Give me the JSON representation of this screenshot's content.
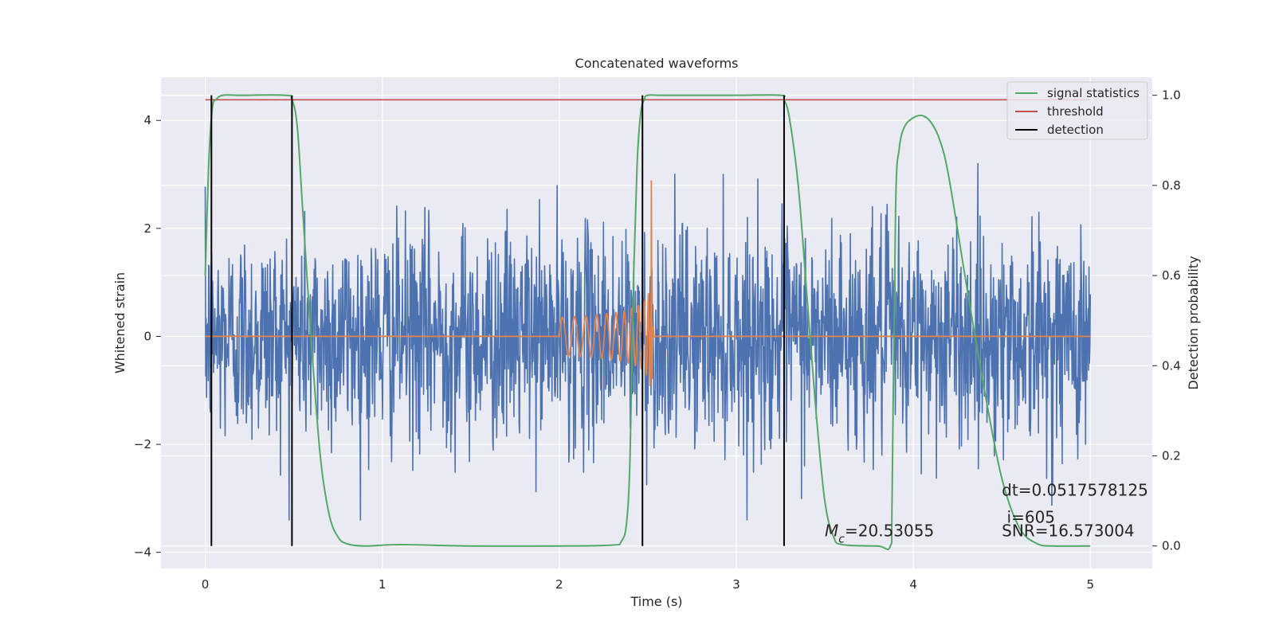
{
  "chart_data": {
    "type": "line",
    "title": "Concatenated waveforms",
    "xlabel": "Time (s)",
    "ylabel": "Whitened strain",
    "y2label": "Detection probability",
    "xlim": [
      -0.25,
      5.35
    ],
    "ylim": [
      -4.3,
      4.8
    ],
    "y2lim": [
      -0.05,
      1.04
    ],
    "xticks": [
      0,
      1,
      2,
      3,
      4,
      5
    ],
    "yticks": [
      -4,
      -2,
      0,
      2,
      4
    ],
    "y2ticks": [
      0.0,
      0.2,
      0.4,
      0.6,
      0.8,
      1.0
    ],
    "grid": true,
    "legend_position": "top-right",
    "legend": [
      "signal statistics",
      "threshold",
      "detection"
    ],
    "colors": {
      "strain": "#4c72b0",
      "waveform": "#dd8452",
      "signal_statistics": "#55a868",
      "threshold": "#c44e52",
      "detection": "#000000",
      "plot_bg": "#eaeaf2",
      "grid": "#ffffff"
    },
    "series": [
      {
        "name": "signal statistics",
        "axis": "right",
        "x": [
          0.0,
          0.02,
          0.04,
          0.06,
          0.1,
          0.2,
          0.45,
          0.49,
          0.52,
          0.55,
          0.6,
          0.65,
          0.7,
          0.75,
          0.8,
          0.9,
          1.1,
          1.5,
          2.0,
          2.3,
          2.35,
          2.38,
          2.4,
          2.42,
          2.44,
          2.46,
          2.48,
          2.5,
          2.6,
          3.0,
          3.25,
          3.27,
          3.3,
          3.35,
          3.4,
          3.45,
          3.5,
          3.55,
          3.6,
          3.8,
          3.87,
          3.88,
          3.9,
          3.92,
          3.95,
          4.0,
          4.05,
          4.1,
          4.15,
          4.2,
          4.3,
          4.4,
          4.5,
          4.6,
          4.7,
          4.8,
          5.0
        ],
        "y": [
          0.6,
          0.85,
          0.97,
          0.99,
          1.0,
          1.0,
          1.0,
          0.99,
          0.93,
          0.75,
          0.45,
          0.2,
          0.07,
          0.02,
          0.005,
          0.0,
          0.003,
          0.0,
          0.0,
          0.002,
          0.01,
          0.05,
          0.2,
          0.6,
          0.85,
          0.96,
          0.99,
          1.0,
          1.0,
          1.0,
          1.0,
          0.99,
          0.95,
          0.8,
          0.55,
          0.3,
          0.1,
          0.02,
          0.003,
          0.0,
          0.0,
          0.1,
          0.75,
          0.88,
          0.93,
          0.95,
          0.955,
          0.94,
          0.9,
          0.82,
          0.58,
          0.35,
          0.15,
          0.04,
          0.005,
          0.0,
          0.0
        ]
      },
      {
        "name": "threshold",
        "axis": "right",
        "x": [
          0.0,
          5.0
        ],
        "y": [
          0.99,
          0.99
        ]
      },
      {
        "name": "detection",
        "axis": "right",
        "type": "vlines",
        "x": [
          0.035,
          0.49,
          2.47,
          3.27
        ],
        "ymin": 0.0,
        "ymax": 1.0
      },
      {
        "name": "",
        "axis": "left",
        "type": "noise",
        "x": [
          0.0,
          5.0
        ],
        "amplitude": 1.0,
        "peak": 3.2,
        "trough": -3.4
      },
      {
        "name": "",
        "axis": "left",
        "type": "chirp",
        "x": [
          2.0,
          2.535
        ],
        "start_amplitude": 0.35,
        "peak_amplitude": 3.0,
        "merger_time": 2.52
      }
    ],
    "annotations": [
      {
        "label": "M_c",
        "value": "=20.53055",
        "x": 3.5,
        "y": -3.7
      },
      {
        "text": "dt=0.0517578125",
        "x": 4.5,
        "y": -2.95
      },
      {
        "text": " i=605",
        "x": 4.5,
        "y": -3.45
      },
      {
        "text": "SNR=16.573004",
        "x": 4.5,
        "y": -3.7
      }
    ]
  }
}
